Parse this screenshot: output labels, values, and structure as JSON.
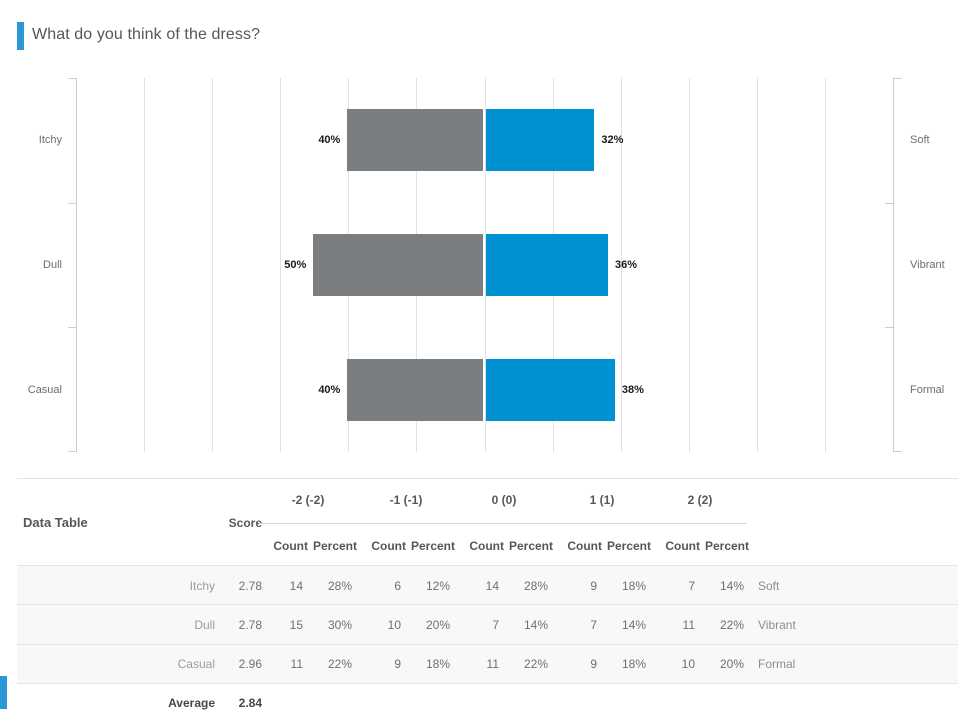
{
  "title": "What do you think of the dress?",
  "colors": {
    "accent": "#2b97d5",
    "bar_negative": "#7b7e80",
    "bar_positive": "#0091d3"
  },
  "chart_data": {
    "type": "bar",
    "subtype": "diverging-horizontal",
    "title": "What do you think of the dress?",
    "axis": {
      "center_value": 0,
      "gridline_step_pct": 20,
      "max_each_side_pct": 120,
      "tick_labels_visible": false
    },
    "categories_left": [
      "Itchy",
      "Dull",
      "Casual"
    ],
    "categories_right": [
      "Soft",
      "Vibrant",
      "Formal"
    ],
    "series": [
      {
        "name": "negative",
        "color": "#7b7e80",
        "values": [
          40,
          50,
          40
        ],
        "labels": [
          "40%",
          "50%",
          "40%"
        ]
      },
      {
        "name": "positive",
        "color": "#0091d3",
        "values": [
          32,
          36,
          38
        ],
        "labels": [
          "32%",
          "36%",
          "38%"
        ]
      }
    ]
  },
  "table": {
    "title": "Data Table",
    "score_header": "Score",
    "group_headers": [
      "-2 (-2)",
      "-1 (-1)",
      "0 (0)",
      "1 (1)",
      "2 (2)"
    ],
    "sub_headers": [
      "Count",
      "Percent"
    ],
    "rows": [
      {
        "label": "Itchy",
        "score": "2.78",
        "values": [
          "14",
          "28%",
          "6",
          "12%",
          "14",
          "28%",
          "9",
          "18%",
          "7",
          "14%"
        ],
        "right_label": "Soft"
      },
      {
        "label": "Dull",
        "score": "2.78",
        "values": [
          "15",
          "30%",
          "10",
          "20%",
          "7",
          "14%",
          "7",
          "14%",
          "11",
          "22%"
        ],
        "right_label": "Vibrant"
      },
      {
        "label": "Casual",
        "score": "2.96",
        "values": [
          "11",
          "22%",
          "9",
          "18%",
          "11",
          "22%",
          "9",
          "18%",
          "10",
          "20%"
        ],
        "right_label": "Formal"
      }
    ],
    "footer": {
      "label": "Average",
      "value": "2.84"
    }
  }
}
